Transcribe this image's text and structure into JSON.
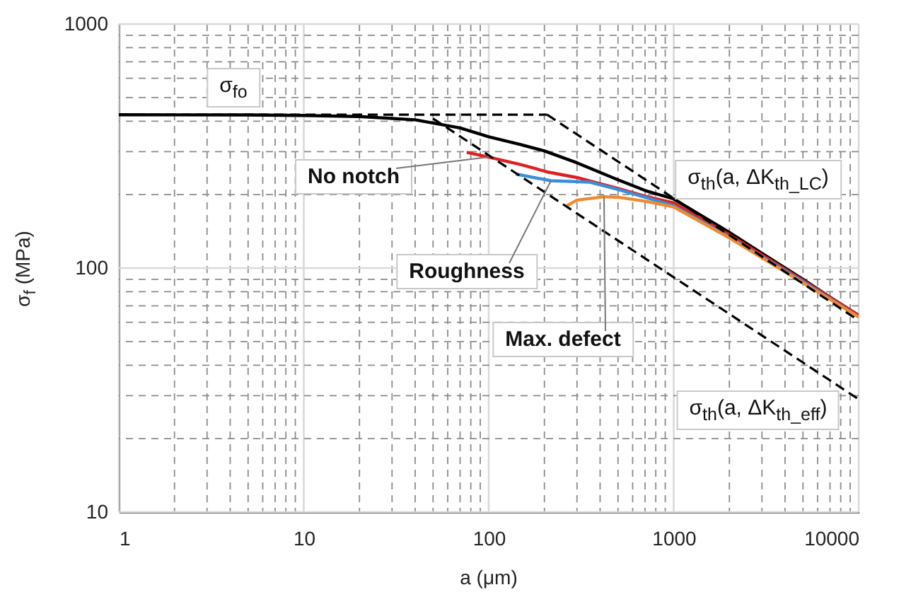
{
  "chart_data": {
    "type": "line",
    "xlabel": "a (μm)",
    "ylabel": "σ$_{f}$ (MPa)",
    "log": "xy",
    "grid": true,
    "xlim": [
      1,
      10000
    ],
    "ylim": [
      10,
      1000
    ],
    "xticks": [
      1,
      {
        "value": 2,
        "label": null
      },
      {
        "value": 3,
        "label": null
      },
      {
        "value": 4,
        "label": null
      },
      {
        "value": 5,
        "label": null
      },
      {
        "value": 6,
        "label": null
      },
      {
        "value": 7,
        "label": null
      },
      {
        "value": 8,
        "label": null
      },
      {
        "value": 9,
        "label": null
      },
      10,
      {
        "value": 20,
        "label": null
      },
      {
        "value": 30,
        "label": null
      },
      {
        "value": 40,
        "label": null
      },
      {
        "value": 50,
        "label": null
      },
      {
        "value": 60,
        "label": null
      },
      {
        "value": 70,
        "label": null
      },
      {
        "value": 80,
        "label": null
      },
      {
        "value": 90,
        "label": null
      },
      100,
      {
        "value": 200,
        "label": null
      },
      {
        "value": 300,
        "label": null
      },
      {
        "value": 400,
        "label": null
      },
      {
        "value": 500,
        "label": null
      },
      {
        "value": 600,
        "label": null
      },
      {
        "value": 700,
        "label": null
      },
      {
        "value": 800,
        "label": null
      },
      {
        "value": 900,
        "label": null
      },
      1000,
      {
        "value": 2000,
        "label": null
      },
      {
        "value": 3000,
        "label": null
      },
      {
        "value": 4000,
        "label": null
      },
      {
        "value": 5000,
        "label": null
      },
      {
        "value": 6000,
        "label": null
      },
      {
        "value": 7000,
        "label": null
      },
      {
        "value": 8000,
        "label": null
      },
      {
        "value": 9000,
        "label": null
      },
      10000
    ],
    "yticks": [
      10,
      {
        "value": 20,
        "label": null
      },
      {
        "value": 30,
        "label": null
      },
      {
        "value": 40,
        "label": null
      },
      {
        "value": 50,
        "label": null
      },
      {
        "value": 60,
        "label": null
      },
      {
        "value": 70,
        "label": null
      },
      {
        "value": 80,
        "label": null
      },
      {
        "value": 90,
        "label": null
      },
      100,
      {
        "value": 200,
        "label": null
      },
      {
        "value": 300,
        "label": null
      },
      {
        "value": 400,
        "label": null
      },
      {
        "value": 500,
        "label": null
      },
      {
        "value": 600,
        "label": null
      },
      {
        "value": 700,
        "label": null
      },
      {
        "value": 800,
        "label": null
      },
      {
        "value": 900,
        "label": null
      },
      1000
    ],
    "series": [
      {
        "color": "#000000",
        "line_style": "solid",
        "x": [
          1,
          5,
          10,
          20,
          40,
          70,
          100,
          150,
          200,
          300,
          500,
          700,
          1000,
          2000,
          3000,
          5000,
          7000,
          10000
        ],
        "values": [
          425,
          424,
          422,
          418,
          405,
          375,
          345,
          320,
          302,
          270,
          230,
          208,
          192,
          140,
          115,
          90,
          76,
          64
        ]
      },
      {
        "name": "No notch",
        "color": "#e02020",
        "line_style": "solid",
        "x": [
          76,
          100,
          150,
          211,
          300,
          500,
          700,
          1000,
          2000,
          5000,
          10000
        ],
        "values": [
          298,
          285,
          265,
          247,
          235,
          212,
          197,
          185,
          137,
          89,
          64
        ]
      },
      {
        "name": "Roughness",
        "color": "#3a8fd8",
        "line_style": "solid",
        "x": [
          140,
          217,
          352,
          500,
          700,
          1000,
          2000,
          5000,
          10000
        ],
        "values": [
          243,
          228,
          225,
          210,
          195,
          180,
          134,
          88,
          63
        ]
      },
      {
        "name": "Max. defect",
        "color": "#f08a30",
        "line_style": "solid",
        "x": [
          261,
          300,
          420,
          500,
          700,
          1000,
          2000,
          5000,
          10000
        ],
        "values": [
          179,
          190,
          196,
          195,
          188,
          178,
          133,
          87,
          63
        ]
      },
      {
        "name": "σ$_{fo}$",
        "color": "#000000",
        "line_style": "dashed",
        "x": [
          1,
          207
        ],
        "values": [
          425,
          425
        ]
      },
      {
        "name": "σ$_{th}$(a, ΔK$_{th_LC}$)",
        "color": "#000000",
        "line_style": "dashed",
        "x": [
          207,
          10000
        ],
        "values": [
          425,
          61
        ]
      },
      {
        "name": "σ$_{th}$(a, ΔK$_{th_eff}$)",
        "color": "#000000",
        "line_style": "dashed",
        "x": [
          50,
          10000
        ],
        "values": [
          410,
          29
        ]
      }
    ]
  }
}
